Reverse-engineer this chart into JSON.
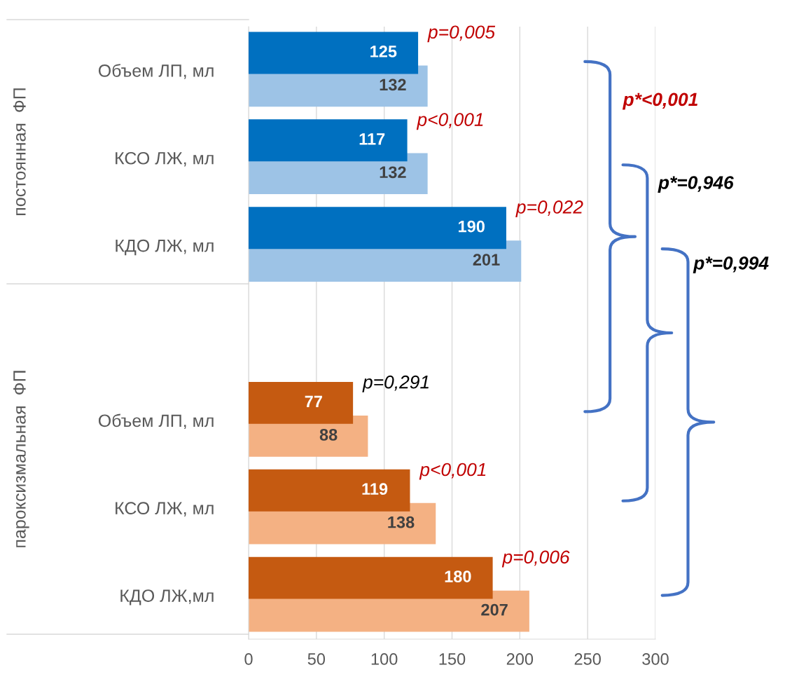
{
  "chart_data": {
    "type": "bar",
    "orientation": "horizontal",
    "categories": [
      "Объем ЛП, мл",
      "КСО ЛЖ, мл",
      "КДО ЛЖ, мл",
      null,
      "Объем ЛП, мл",
      "КСО ЛЖ, мл",
      "КДО ЛЖ,мл"
    ],
    "series": [
      {
        "colors": [
          "#0070c0",
          "#0070c0",
          "#0070c0",
          null,
          "#c55a11",
          "#c55a11",
          "#c55a11"
        ],
        "values": [
          125,
          117,
          190,
          null,
          77,
          119,
          180
        ]
      },
      {
        "colors": [
          "#9dc3e6",
          "#9dc3e6",
          "#9dc3e6",
          null,
          "#f4b183",
          "#f4b183",
          "#f4b183"
        ],
        "values": [
          132,
          132,
          201,
          null,
          88,
          138,
          207
        ]
      }
    ],
    "data_labels": true,
    "xlim": [
      0,
      300
    ],
    "xticks": [
      0,
      50,
      100,
      150,
      200,
      250,
      300
    ],
    "grid": "x",
    "annotations": [
      "постоянная  ФП",
      "пароксизмальная  ФП",
      {
        "text": "p=0,005",
        "x": 125
      },
      {
        "text": "p<0,001",
        "x": 117
      },
      {
        "text": "p=0,022",
        "x": 190
      },
      {
        "text": "p=0,291",
        "x": 77
      },
      {
        "text": "p<0,001",
        "x": 119
      },
      {
        "text": "p=0,006",
        "x": 180
      },
      {
        "text": "p*<0,001"
      },
      {
        "text": "p*=0,946"
      },
      {
        "text": "p*=0,994"
      }
    ]
  }
}
